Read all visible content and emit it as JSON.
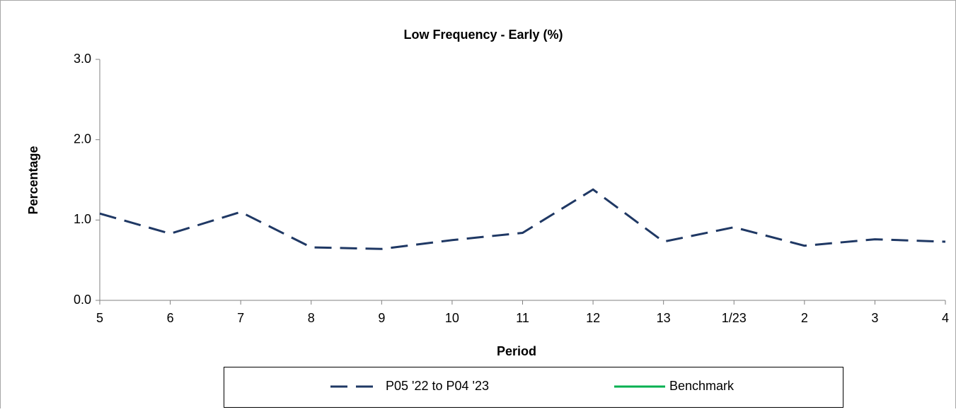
{
  "chart_data": {
    "type": "line",
    "title": "Low Frequency - Early (%)",
    "x_label": "Period",
    "y_label": "Percentage",
    "categories": [
      "5",
      "6",
      "7",
      "8",
      "9",
      "10",
      "11",
      "12",
      "13",
      "1/23",
      "2",
      "3",
      "4"
    ],
    "series": [
      {
        "name": "P05 '22 to P04 '23",
        "color": "#1f3864",
        "dashed": true,
        "values": [
          1.08,
          0.83,
          1.1,
          0.66,
          0.64,
          0.75,
          0.84,
          1.38,
          0.73,
          0.91,
          0.68,
          0.76,
          0.73
        ]
      },
      {
        "name": "Benchmark",
        "color": "#00b050",
        "dashed": false,
        "values": [
          null,
          null,
          null,
          null,
          null,
          null,
          null,
          null,
          null,
          null,
          null,
          null,
          null
        ]
      }
    ],
    "ylim": [
      0,
      3
    ],
    "yticks": [
      {
        "value": 0,
        "label": "0.0"
      },
      {
        "value": 1,
        "label": "1.0"
      },
      {
        "value": 2,
        "label": "2.0"
      },
      {
        "value": 3,
        "label": "3.0"
      }
    ],
    "grid": false,
    "legend": "bottom"
  }
}
